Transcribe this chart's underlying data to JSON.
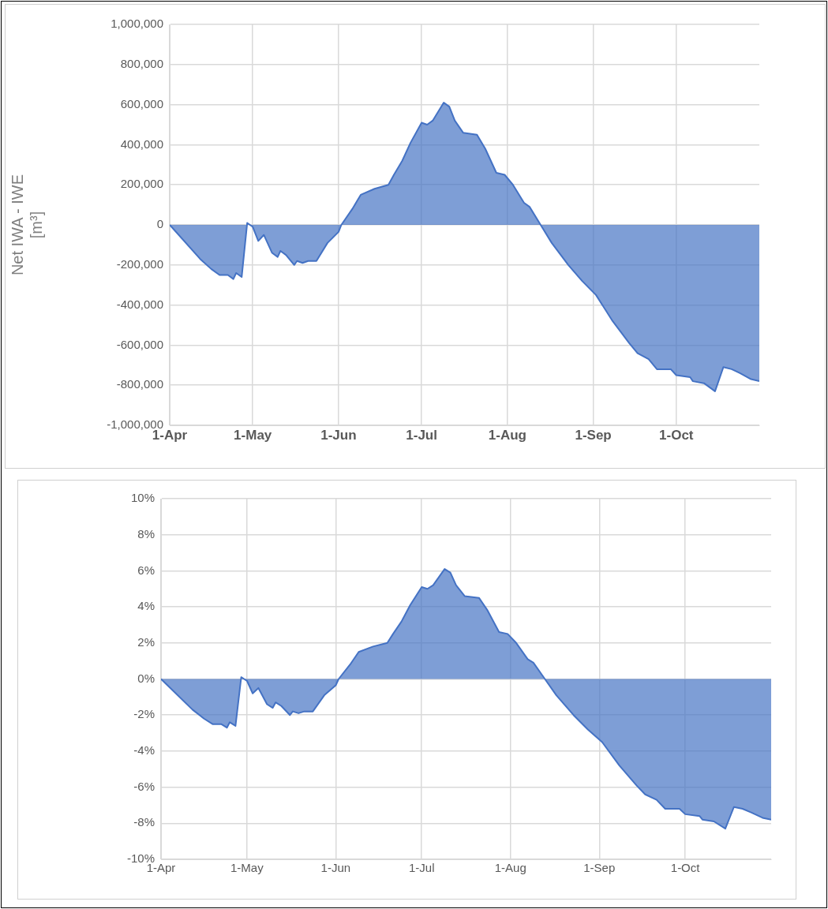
{
  "chart_data": [
    {
      "type": "area",
      "ylabel": "Net IWA - IWE\n[m³]",
      "x": [
        "--04-01",
        "--04-12",
        "--04-16",
        "--04-19",
        "--04-22",
        "--04-24",
        "--04-25",
        "--04-27",
        "--04-29",
        "--04-30",
        "--05-01",
        "--05-03",
        "--05-05",
        "--05-08",
        "--05-10",
        "--05-11",
        "--05-13",
        "--05-16",
        "--05-17",
        "--05-19",
        "--05-21",
        "--05-24",
        "--05-28",
        "--06-01",
        "--06-02",
        "--06-06",
        "--06-09",
        "--06-14",
        "--06-19",
        "--06-21",
        "--06-24",
        "--06-27",
        "--07-01",
        "--07-03",
        "--07-05",
        "--07-09",
        "--07-11",
        "--07-13",
        "--07-16",
        "--07-21",
        "--07-24",
        "--07-28",
        "--07-31",
        "--08-03",
        "--08-07",
        "--08-09",
        "--08-13",
        "--08-17",
        "--08-23",
        "--08-28",
        "--09-02",
        "--09-08",
        "--09-14",
        "--09-17",
        "--09-21",
        "--09-24",
        "--09-29",
        "--10-01",
        "--10-06",
        "--10-07",
        "--10-11",
        "--10-15",
        "--10-18",
        "--10-21",
        "--10-24",
        "--10-28",
        "--10-31"
      ],
      "series": [
        {
          "color": "#4472c4",
          "values": [
            0,
            -170000,
            -220000,
            -250000,
            -250000,
            -270000,
            -240000,
            -260000,
            10000,
            0,
            -10000,
            -80000,
            -50000,
            -140000,
            -160000,
            -130000,
            -150000,
            -200000,
            -180000,
            -190000,
            -180000,
            -180000,
            -90000,
            -35000,
            0,
            80000,
            150000,
            180000,
            200000,
            250000,
            320000,
            410000,
            510000,
            500000,
            520000,
            610000,
            590000,
            520000,
            460000,
            450000,
            380000,
            260000,
            250000,
            200000,
            110000,
            90000,
            0,
            -90000,
            -200000,
            -280000,
            -350000,
            -480000,
            -590000,
            -640000,
            -670000,
            -720000,
            -720000,
            -750000,
            -760000,
            -780000,
            -790000,
            -830000,
            -710000,
            -720000,
            -740000,
            -770000,
            -780000
          ]
        }
      ],
      "xlim": [
        "--04-01",
        "--10-31"
      ],
      "xticks": [
        {
          "value": "--04-01",
          "label": "1-Apr"
        },
        {
          "value": "--05-01",
          "label": "1-May"
        },
        {
          "value": "--06-01",
          "label": "1-Jun"
        },
        {
          "value": "--07-01",
          "label": "1-Jul"
        },
        {
          "value": "--08-01",
          "label": "1-Aug"
        },
        {
          "value": "--09-01",
          "label": "1-Sep"
        },
        {
          "value": "--10-01",
          "label": "1-Oct"
        }
      ],
      "ylim": [
        -1000000,
        1000000
      ],
      "yticks": [
        {
          "value": -1000000,
          "label": "-1,000,000"
        },
        {
          "value": -800000,
          "label": "-800,000"
        },
        {
          "value": -600000,
          "label": "-600,000"
        },
        {
          "value": -400000,
          "label": "-400,000"
        },
        {
          "value": -200000,
          "label": "-200,000"
        },
        0,
        {
          "value": 200000,
          "label": "200,000"
        },
        {
          "value": 400000,
          "label": "400,000"
        },
        {
          "value": 600000,
          "label": "600,000"
        },
        {
          "value": 800000,
          "label": "800,000"
        },
        {
          "value": 1000000,
          "label": "1,000,000"
        }
      ],
      "grid": true,
      "legend": false
    },
    {
      "type": "area",
      "x": [
        "--04-01",
        "--04-12",
        "--04-16",
        "--04-19",
        "--04-22",
        "--04-24",
        "--04-25",
        "--04-27",
        "--04-29",
        "--04-30",
        "--05-01",
        "--05-03",
        "--05-05",
        "--05-08",
        "--05-10",
        "--05-11",
        "--05-13",
        "--05-16",
        "--05-17",
        "--05-19",
        "--05-21",
        "--05-24",
        "--05-28",
        "--06-01",
        "--06-02",
        "--06-06",
        "--06-09",
        "--06-14",
        "--06-19",
        "--06-21",
        "--06-24",
        "--06-27",
        "--07-01",
        "--07-03",
        "--07-05",
        "--07-09",
        "--07-11",
        "--07-13",
        "--07-16",
        "--07-21",
        "--07-24",
        "--07-28",
        "--07-31",
        "--08-03",
        "--08-07",
        "--08-09",
        "--08-13",
        "--08-17",
        "--08-23",
        "--08-28",
        "--09-02",
        "--09-08",
        "--09-14",
        "--09-17",
        "--09-21",
        "--09-24",
        "--09-29",
        "--10-01",
        "--10-06",
        "--10-07",
        "--10-11",
        "--10-15",
        "--10-18",
        "--10-21",
        "--10-24",
        "--10-28",
        "--10-31"
      ],
      "series": [
        {
          "color": "#4472c4",
          "values": [
            0,
            -1.7,
            -2.2,
            -2.5,
            -2.5,
            -2.7,
            -2.4,
            -2.6,
            0.1,
            0,
            -0.1,
            -0.8,
            -0.5,
            -1.4,
            -1.6,
            -1.3,
            -1.5,
            -2.0,
            -1.8,
            -1.9,
            -1.8,
            -1.8,
            -0.9,
            -0.35,
            0,
            0.8,
            1.5,
            1.8,
            2.0,
            2.5,
            3.2,
            4.1,
            5.1,
            5.0,
            5.2,
            6.1,
            5.9,
            5.2,
            4.6,
            4.5,
            3.8,
            2.6,
            2.5,
            2.0,
            1.1,
            0.9,
            0,
            -0.9,
            -2.0,
            -2.8,
            -3.5,
            -4.8,
            -5.9,
            -6.4,
            -6.7,
            -7.2,
            -7.2,
            -7.5,
            -7.6,
            -7.8,
            -7.9,
            -8.3,
            -7.1,
            -7.2,
            -7.4,
            -7.7,
            -7.8
          ]
        }
      ],
      "xlim": [
        "--04-01",
        "--10-31"
      ],
      "xticks": [
        {
          "value": "--04-01",
          "label": "1-Apr"
        },
        {
          "value": "--05-01",
          "label": "1-May"
        },
        {
          "value": "--06-01",
          "label": "1-Jun"
        },
        {
          "value": "--07-01",
          "label": "1-Jul"
        },
        {
          "value": "--08-01",
          "label": "1-Aug"
        },
        {
          "value": "--09-01",
          "label": "1-Sep"
        },
        {
          "value": "--10-01",
          "label": "1-Oct"
        }
      ],
      "ylim": [
        -10,
        10
      ],
      "yticks": [
        {
          "value": -10,
          "label": "-10%"
        },
        {
          "value": -8,
          "label": "-8%"
        },
        {
          "value": -6,
          "label": "-6%"
        },
        {
          "value": -4,
          "label": "-4%"
        },
        {
          "value": -2,
          "label": "-2%"
        },
        {
          "value": 0,
          "label": "0%"
        },
        {
          "value": 2,
          "label": "2%"
        },
        {
          "value": 4,
          "label": "4%"
        },
        {
          "value": 6,
          "label": "6%"
        },
        {
          "value": 8,
          "label": "8%"
        },
        {
          "value": 10,
          "label": "10%"
        }
      ],
      "grid": true,
      "legend": false
    }
  ]
}
